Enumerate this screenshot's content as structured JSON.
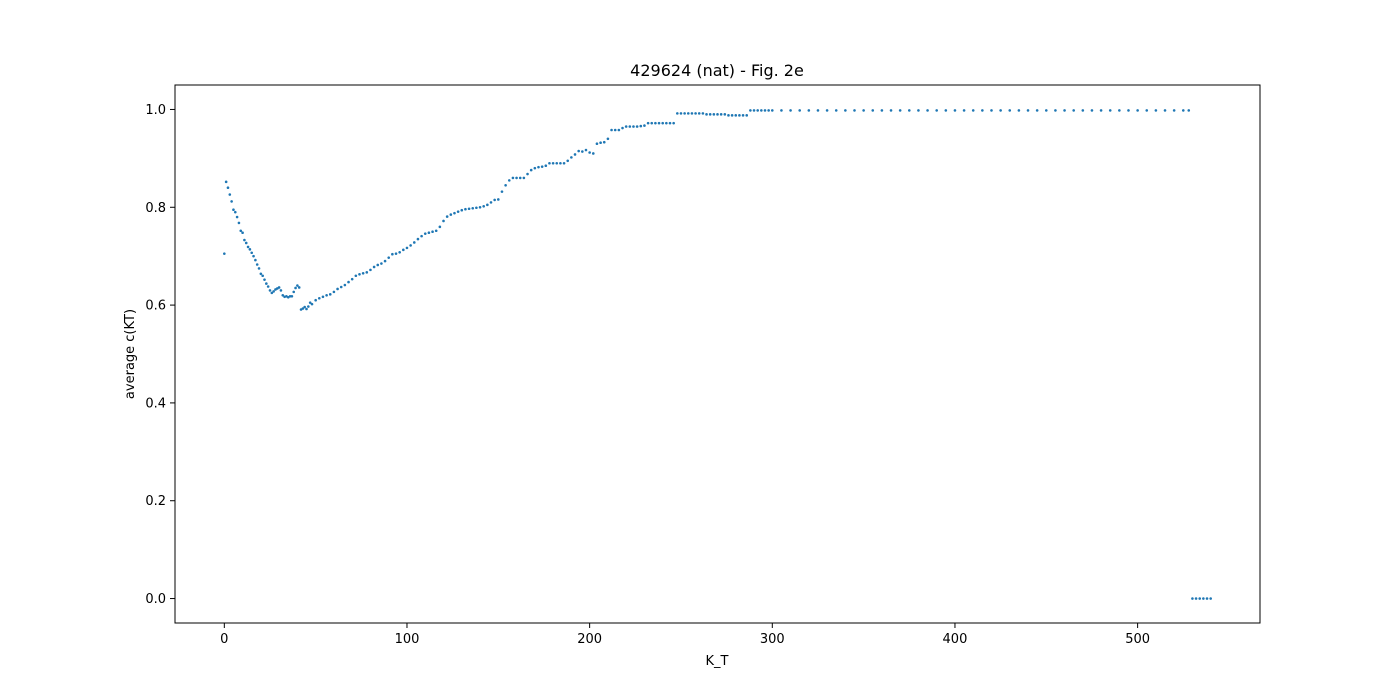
{
  "chart_data": {
    "type": "scatter",
    "title": "429624 (nat) - Fig. 2e",
    "xlabel": "K_T",
    "ylabel": "average c(KT)",
    "xlim": [
      -27,
      567
    ],
    "ylim": [
      -0.05,
      1.05
    ],
    "xticks": [
      0,
      100,
      200,
      300,
      400,
      500
    ],
    "yticks": [
      0.0,
      0.2,
      0.4,
      0.6,
      0.8,
      1.0
    ],
    "xtick_labels": [
      "0",
      "100",
      "200",
      "300",
      "400",
      "500"
    ],
    "ytick_labels": [
      "0.0",
      "0.2",
      "0.4",
      "0.6",
      "0.8",
      "1.0"
    ],
    "grid": false,
    "legend": "none",
    "marker_color": "#1f77b4",
    "series": [
      {
        "points": [
          [
            0,
            0.705
          ],
          [
            1,
            0.852
          ],
          [
            2,
            0.84
          ],
          [
            3,
            0.826
          ],
          [
            4,
            0.812
          ],
          [
            5,
            0.795
          ],
          [
            6,
            0.79
          ],
          [
            7,
            0.78
          ],
          [
            8,
            0.768
          ],
          [
            9,
            0.752
          ],
          [
            10,
            0.748
          ],
          [
            11,
            0.733
          ],
          [
            12,
            0.727
          ],
          [
            13,
            0.719
          ],
          [
            14,
            0.714
          ],
          [
            15,
            0.707
          ],
          [
            16,
            0.7
          ],
          [
            17,
            0.692
          ],
          [
            18,
            0.683
          ],
          [
            19,
            0.675
          ],
          [
            20,
            0.664
          ],
          [
            21,
            0.66
          ],
          [
            22,
            0.652
          ],
          [
            23,
            0.644
          ],
          [
            24,
            0.638
          ],
          [
            25,
            0.63
          ],
          [
            26,
            0.625
          ],
          [
            27,
            0.628
          ],
          [
            28,
            0.632
          ],
          [
            29,
            0.634
          ],
          [
            30,
            0.636
          ],
          [
            31,
            0.63
          ],
          [
            32,
            0.62
          ],
          [
            33,
            0.617
          ],
          [
            34,
            0.618
          ],
          [
            35,
            0.616
          ],
          [
            36,
            0.618
          ],
          [
            37,
            0.618
          ],
          [
            38,
            0.627
          ],
          [
            39,
            0.635
          ],
          [
            40,
            0.64
          ],
          [
            41,
            0.636
          ],
          [
            42,
            0.591
          ],
          [
            43,
            0.593
          ],
          [
            44,
            0.596
          ],
          [
            45,
            0.592
          ],
          [
            46,
            0.597
          ],
          [
            47,
            0.605
          ],
          [
            48,
            0.602
          ],
          [
            50,
            0.61
          ],
          [
            52,
            0.614
          ],
          [
            54,
            0.617
          ],
          [
            56,
            0.62
          ],
          [
            58,
            0.622
          ],
          [
            60,
            0.627
          ],
          [
            62,
            0.633
          ],
          [
            64,
            0.637
          ],
          [
            66,
            0.641
          ],
          [
            68,
            0.647
          ],
          [
            70,
            0.653
          ],
          [
            72,
            0.66
          ],
          [
            74,
            0.663
          ],
          [
            76,
            0.665
          ],
          [
            78,
            0.667
          ],
          [
            80,
            0.672
          ],
          [
            82,
            0.678
          ],
          [
            84,
            0.682
          ],
          [
            86,
            0.685
          ],
          [
            88,
            0.69
          ],
          [
            90,
            0.697
          ],
          [
            92,
            0.704
          ],
          [
            94,
            0.705
          ],
          [
            96,
            0.708
          ],
          [
            98,
            0.713
          ],
          [
            100,
            0.717
          ],
          [
            102,
            0.722
          ],
          [
            104,
            0.728
          ],
          [
            106,
            0.735
          ],
          [
            108,
            0.741
          ],
          [
            110,
            0.746
          ],
          [
            112,
            0.748
          ],
          [
            114,
            0.75
          ],
          [
            116,
            0.752
          ],
          [
            118,
            0.76
          ],
          [
            120,
            0.772
          ],
          [
            122,
            0.781
          ],
          [
            124,
            0.785
          ],
          [
            126,
            0.788
          ],
          [
            128,
            0.791
          ],
          [
            130,
            0.794
          ],
          [
            132,
            0.796
          ],
          [
            134,
            0.797
          ],
          [
            136,
            0.798
          ],
          [
            138,
            0.799
          ],
          [
            140,
            0.8
          ],
          [
            142,
            0.802
          ],
          [
            144,
            0.805
          ],
          [
            146,
            0.81
          ],
          [
            148,
            0.815
          ],
          [
            150,
            0.816
          ],
          [
            152,
            0.832
          ],
          [
            154,
            0.845
          ],
          [
            156,
            0.855
          ],
          [
            158,
            0.86
          ],
          [
            160,
            0.86
          ],
          [
            162,
            0.86
          ],
          [
            164,
            0.86
          ],
          [
            166,
            0.868
          ],
          [
            168,
            0.876
          ],
          [
            170,
            0.88
          ],
          [
            172,
            0.882
          ],
          [
            174,
            0.883
          ],
          [
            176,
            0.885
          ],
          [
            178,
            0.89
          ],
          [
            180,
            0.89
          ],
          [
            182,
            0.89
          ],
          [
            184,
            0.89
          ],
          [
            186,
            0.89
          ],
          [
            188,
            0.895
          ],
          [
            190,
            0.902
          ],
          [
            192,
            0.908
          ],
          [
            194,
            0.915
          ],
          [
            196,
            0.914
          ],
          [
            198,
            0.917
          ],
          [
            200,
            0.912
          ],
          [
            202,
            0.91
          ],
          [
            204,
            0.93
          ],
          [
            206,
            0.932
          ],
          [
            208,
            0.933
          ],
          [
            210,
            0.94
          ],
          [
            212,
            0.958
          ],
          [
            214,
            0.958
          ],
          [
            216,
            0.958
          ],
          [
            218,
            0.962
          ],
          [
            220,
            0.965
          ],
          [
            222,
            0.965
          ],
          [
            224,
            0.965
          ],
          [
            226,
            0.965
          ],
          [
            228,
            0.966
          ],
          [
            230,
            0.967
          ],
          [
            232,
            0.972
          ],
          [
            234,
            0.972
          ],
          [
            236,
            0.972
          ],
          [
            238,
            0.972
          ],
          [
            240,
            0.972
          ],
          [
            242,
            0.972
          ],
          [
            244,
            0.972
          ],
          [
            246,
            0.972
          ],
          [
            248,
            0.992
          ],
          [
            250,
            0.992
          ],
          [
            252,
            0.992
          ],
          [
            254,
            0.992
          ],
          [
            256,
            0.992
          ],
          [
            258,
            0.992
          ],
          [
            260,
            0.992
          ],
          [
            262,
            0.992
          ],
          [
            264,
            0.99
          ],
          [
            266,
            0.99
          ],
          [
            268,
            0.99
          ],
          [
            270,
            0.99
          ],
          [
            272,
            0.99
          ],
          [
            274,
            0.99
          ],
          [
            276,
            0.988
          ],
          [
            278,
            0.988
          ],
          [
            280,
            0.988
          ],
          [
            282,
            0.988
          ],
          [
            284,
            0.988
          ],
          [
            286,
            0.988
          ],
          [
            288,
            0.998
          ],
          [
            290,
            0.998
          ],
          [
            292,
            0.998
          ],
          [
            294,
            0.998
          ],
          [
            296,
            0.998
          ],
          [
            298,
            0.998
          ],
          [
            300,
            0.998
          ],
          [
            305,
            0.998
          ],
          [
            310,
            0.998
          ],
          [
            315,
            0.998
          ],
          [
            320,
            0.998
          ],
          [
            325,
            0.998
          ],
          [
            330,
            0.998
          ],
          [
            335,
            0.998
          ],
          [
            340,
            0.998
          ],
          [
            345,
            0.998
          ],
          [
            350,
            0.998
          ],
          [
            355,
            0.998
          ],
          [
            360,
            0.998
          ],
          [
            365,
            0.998
          ],
          [
            370,
            0.998
          ],
          [
            375,
            0.998
          ],
          [
            380,
            0.998
          ],
          [
            385,
            0.998
          ],
          [
            390,
            0.998
          ],
          [
            395,
            0.998
          ],
          [
            400,
            0.998
          ],
          [
            405,
            0.998
          ],
          [
            410,
            0.998
          ],
          [
            415,
            0.998
          ],
          [
            420,
            0.998
          ],
          [
            425,
            0.998
          ],
          [
            430,
            0.998
          ],
          [
            435,
            0.998
          ],
          [
            440,
            0.998
          ],
          [
            445,
            0.998
          ],
          [
            450,
            0.998
          ],
          [
            455,
            0.998
          ],
          [
            460,
            0.998
          ],
          [
            465,
            0.998
          ],
          [
            470,
            0.998
          ],
          [
            475,
            0.998
          ],
          [
            480,
            0.998
          ],
          [
            485,
            0.998
          ],
          [
            490,
            0.998
          ],
          [
            495,
            0.998
          ],
          [
            500,
            0.998
          ],
          [
            505,
            0.998
          ],
          [
            510,
            0.998
          ],
          [
            515,
            0.998
          ],
          [
            520,
            0.998
          ],
          [
            525,
            0.998
          ],
          [
            528,
            0.998
          ],
          [
            530,
            0.0
          ],
          [
            532,
            0.0
          ],
          [
            534,
            0.0
          ],
          [
            536,
            0.0
          ],
          [
            538,
            0.0
          ],
          [
            540,
            0.0
          ]
        ]
      }
    ]
  }
}
